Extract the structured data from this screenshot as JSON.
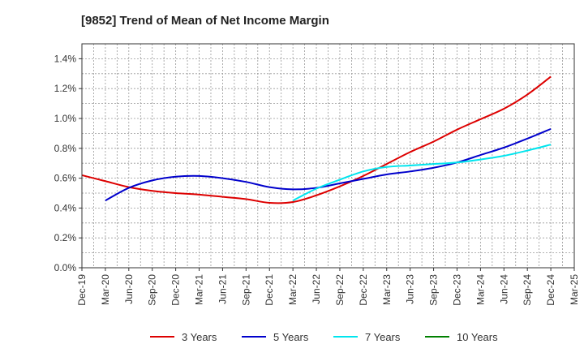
{
  "chart_data": {
    "type": "line",
    "title": "[9852]  Trend of Mean of Net Income Margin",
    "xlabel": "",
    "ylabel": "",
    "x": [
      "Dec-19",
      "Mar-20",
      "Jun-20",
      "Sep-20",
      "Dec-20",
      "Mar-21",
      "Jun-21",
      "Sep-21",
      "Dec-21",
      "Mar-22",
      "Jun-22",
      "Sep-22",
      "Dec-22",
      "Mar-23",
      "Jun-23",
      "Sep-23",
      "Dec-23",
      "Mar-24",
      "Jun-24",
      "Sep-24",
      "Dec-24",
      "Mar-25"
    ],
    "yticks": [
      "0.0%",
      "0.2%",
      "0.4%",
      "0.6%",
      "0.8%",
      "1.0%",
      "1.2%",
      "1.4%"
    ],
    "ylim": [
      0,
      1.5
    ],
    "grid": true,
    "legend_position": "bottom",
    "series": [
      {
        "name": "3 Years",
        "color": "#dd0000",
        "values": [
          0.62,
          0.58,
          0.54,
          0.515,
          0.5,
          0.49,
          0.475,
          0.46,
          0.435,
          0.44,
          0.485,
          0.545,
          0.615,
          0.695,
          0.775,
          0.845,
          0.925,
          0.995,
          1.065,
          1.16,
          1.28,
          null
        ]
      },
      {
        "name": "5 Years",
        "color": "#0000cc",
        "values": [
          null,
          0.45,
          0.535,
          0.585,
          0.61,
          0.615,
          0.6,
          0.575,
          0.54,
          0.525,
          0.535,
          0.565,
          0.595,
          0.625,
          0.645,
          0.67,
          0.705,
          0.755,
          0.805,
          0.865,
          0.93,
          null
        ]
      },
      {
        "name": "7 Years",
        "color": "#00e5ee",
        "values": [
          null,
          null,
          null,
          null,
          null,
          null,
          null,
          null,
          null,
          0.45,
          0.53,
          0.59,
          0.645,
          0.675,
          0.685,
          0.695,
          0.705,
          0.725,
          0.75,
          0.785,
          0.825,
          null
        ]
      },
      {
        "name": "10 Years",
        "color": "#008000",
        "values": [
          null,
          null,
          null,
          null,
          null,
          null,
          null,
          null,
          null,
          null,
          null,
          null,
          null,
          null,
          null,
          null,
          null,
          null,
          null,
          null,
          null,
          null
        ]
      }
    ]
  }
}
